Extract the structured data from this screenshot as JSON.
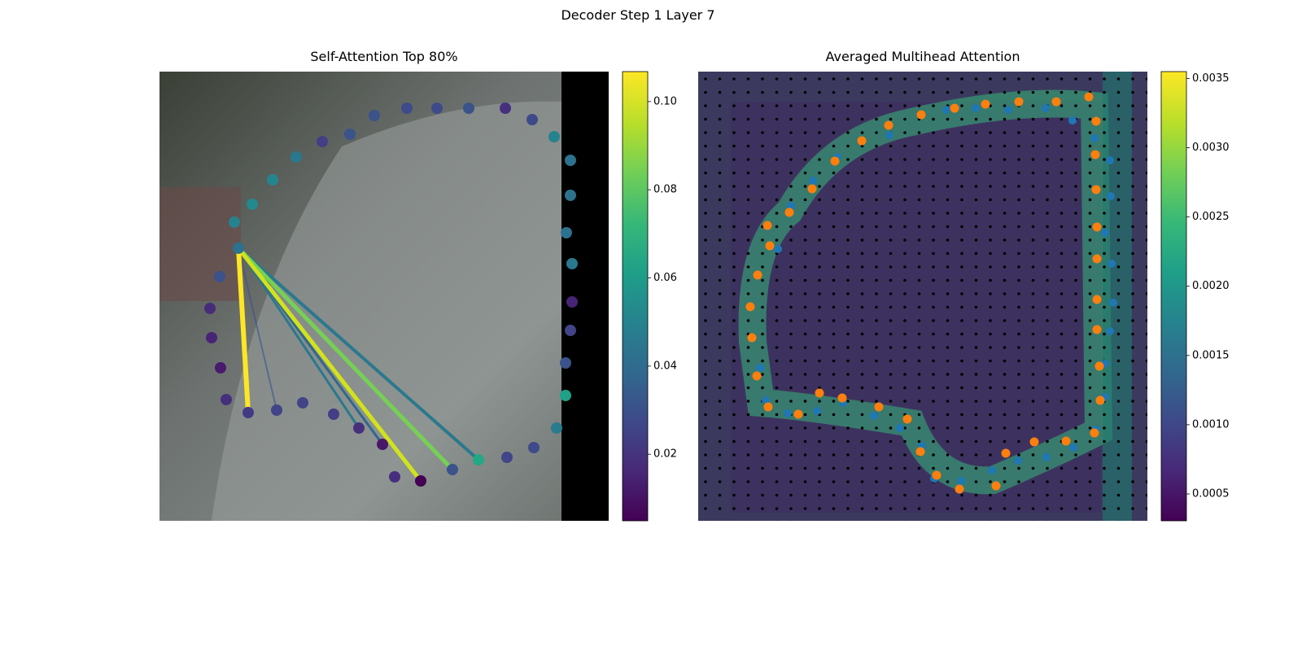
{
  "title": "Decoder Step 1 Layer 7",
  "chart_data": [
    {
      "type": "image",
      "title": "Self-Attention Top 80%",
      "colorbar": {
        "lim": [
          0.0049,
          0.1068
        ],
        "ticks": [
          0.02,
          0.04,
          0.06,
          0.08,
          {
            "value": 0.1,
            "label": "0.10"
          }
        ]
      }
    },
    {
      "type": "heatmap",
      "title": "Averaged Multihead Attention",
      "colorbar": {
        "lim": [
          0.000306,
          0.00355
        ],
        "ticks": [
          0.0005,
          {
            "value": 0.001,
            "label": "0.0010"
          },
          0.0015,
          {
            "value": 0.002,
            "label": "0.0020"
          },
          0.0025,
          {
            "value": 0.003,
            "label": "0.0030"
          },
          0.0035
        ]
      }
    }
  ]
}
